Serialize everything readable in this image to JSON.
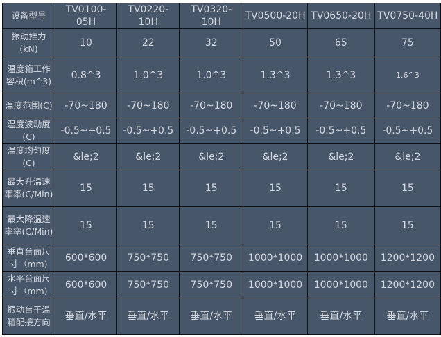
{
  "header": {
    "label": "设备型号",
    "models": [
      "TV0100-05H",
      "TV0220-10H",
      "TV0320-10H",
      "TV0500-20H",
      "TV0650-20H",
      "TV0750-40H"
    ]
  },
  "rows": [
    {
      "label": "振动推力(kN)",
      "values": [
        "10",
        "22",
        "32",
        "50",
        "65",
        "75"
      ]
    },
    {
      "label": "温度箱工作容积(m^3)",
      "values": [
        "0.8^3",
        "1.0^3",
        "1.0^3",
        "1.3^3",
        "1.3^3",
        "1.6^3"
      ]
    },
    {
      "label": "温度范围(C)",
      "values": [
        "-70~180",
        "-70~180",
        "-70~180",
        "-70~180",
        "-70~180",
        "-70~180"
      ]
    },
    {
      "label": "温度波动度(C)",
      "values": [
        "-0.5~+0.5",
        "-0.5~+0.5",
        "-0.5~+0.5",
        "-0.5~+0.5",
        "-0.5~+0.5",
        "-0.5~+0.5"
      ]
    },
    {
      "label": "温度均匀度(C)",
      "values": [
        "&le;2",
        "&le;2",
        "&le;2",
        "&le;2",
        "&le;2",
        "&le;2"
      ]
    },
    {
      "label": "最大升温速率率(C/Min)",
      "values": [
        "15",
        "15",
        "15",
        "15",
        "15",
        "15"
      ]
    },
    {
      "label": "最大降温速率率(C/Min)",
      "values": [
        "15",
        "15",
        "15",
        "15",
        "15",
        "15"
      ]
    },
    {
      "label": "垂直台面尺寸（mm)",
      "values": [
        "600*600",
        "750*750",
        "750*750",
        "1000*1000",
        "1000*1000",
        "1200*1200"
      ]
    },
    {
      "label": "水平台面尺寸（mm)",
      "values": [
        "600*600",
        "750*750",
        "750*750",
        "1000*1000",
        "1000*1000",
        "1200*1200"
      ]
    },
    {
      "label": "振动台于温箱配接方向",
      "values": [
        "垂直/水平",
        "垂直/水平",
        "垂直/水平",
        "垂直/水平",
        "垂直/水平",
        "垂直/水平"
      ]
    }
  ]
}
